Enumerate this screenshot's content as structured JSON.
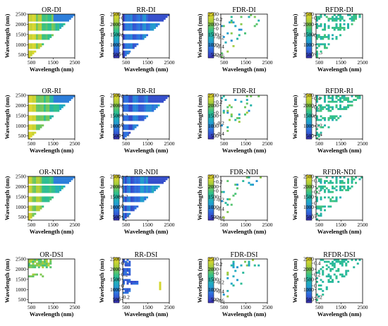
{
  "colormap": [
    "#3b2fb8",
    "#2f6fe0",
    "#1fa7c9",
    "#2fc08a",
    "#a6cc3a",
    "#f3dc2a"
  ],
  "chart_data": [
    {
      "type": "heatmap",
      "title": "OR-DI",
      "xlabel": "Wavelength (nm)",
      "ylabel": "Wavelength (nm)",
      "xticks": [
        "500",
        "1500",
        "2500"
      ],
      "yticks": [
        "500",
        "1000",
        "1500",
        "2000",
        "2500"
      ],
      "xlim": [
        350,
        2500
      ],
      "ylim": [
        350,
        2500
      ],
      "cbar_ticks": [
        {
          "v": 0.5,
          "label": "0.5"
        },
        {
          "v": 0,
          "label": "0"
        },
        {
          "v": -0.5,
          "label": "-0.5"
        }
      ],
      "clim": [
        -0.65,
        0.65
      ],
      "pattern": "dense",
      "base": 0.72
    },
    {
      "type": "heatmap",
      "title": "RR-DI",
      "xlabel": "Wavelength (nm)",
      "ylabel": "Wavelength (nm)",
      "xticks": [
        "500",
        "1500",
        "2500"
      ],
      "yticks": [
        "500",
        "1000",
        "1500",
        "2000",
        "2500"
      ],
      "xlim": [
        350,
        2500
      ],
      "ylim": [
        350,
        2500
      ],
      "cbar_ticks": [
        {
          "v": 0.2,
          "label": "0.2"
        },
        {
          "v": 0,
          "label": "0"
        },
        {
          "v": -0.2,
          "label": "-0.2"
        },
        {
          "v": -0.4,
          "label": "-0.4"
        },
        {
          "v": -0.6,
          "label": "-0.6"
        }
      ],
      "clim": [
        -0.65,
        0.35
      ],
      "pattern": "dense",
      "base": 0.22
    },
    {
      "type": "heatmap",
      "title": "FDR-DI",
      "xlabel": "Wavelength (nm)",
      "ylabel": "Wavelength (nm)",
      "xticks": [
        "500",
        "1500",
        "2500"
      ],
      "yticks": [
        "500",
        "1000",
        "1500",
        "2000",
        "2500"
      ],
      "xlim": [
        350,
        2500
      ],
      "ylim": [
        350,
        2500
      ],
      "cbar_ticks": [
        {
          "v": 0.5,
          "label": "0.5"
        },
        {
          "v": 0,
          "label": "0"
        },
        {
          "v": -0.5,
          "label": "-0.5"
        }
      ],
      "clim": [
        -0.65,
        0.65
      ],
      "pattern": "sparse",
      "base": 0.5
    },
    {
      "type": "heatmap",
      "title": "RFDR-DI",
      "xlabel": "Wavelength (nm)",
      "ylabel": "Wavelength (nm)",
      "xticks": [
        "500",
        "1500",
        "2500"
      ],
      "yticks": [
        "500",
        "1000",
        "1500",
        "2000",
        "2500"
      ],
      "xlim": [
        350,
        2500
      ],
      "ylim": [
        350,
        2500
      ],
      "cbar_ticks": [
        {
          "v": 0.2,
          "label": "0.2"
        },
        {
          "v": 0,
          "label": "0"
        },
        {
          "v": -0.2,
          "label": "-0.2"
        },
        {
          "v": -0.4,
          "label": "-0.4"
        }
      ],
      "clim": [
        -0.45,
        0.35
      ],
      "pattern": "medium",
      "base": 0.5
    },
    {
      "type": "heatmap",
      "title": "OR-RI",
      "xlabel": "Wavelength (nm)",
      "ylabel": "Wavelength (nm)",
      "xticks": [
        "500",
        "1500",
        "2500"
      ],
      "yticks": [
        "500",
        "1000",
        "1500",
        "2000",
        "2500"
      ],
      "xlim": [
        350,
        2500
      ],
      "ylim": [
        350,
        2500
      ],
      "cbar_ticks": [
        {
          "v": 0.6,
          "label": "0.6"
        },
        {
          "v": 0.4,
          "label": "0.4"
        },
        {
          "v": 0.2,
          "label": "0.2"
        },
        {
          "v": 0,
          "label": "0"
        },
        {
          "v": -0.2,
          "label": "-0.2"
        }
      ],
      "clim": [
        -0.3,
        0.65
      ],
      "pattern": "dense",
      "base": 0.72
    },
    {
      "type": "heatmap",
      "title": "RR-RI",
      "xlabel": "Wavelength (nm)",
      "ylabel": "Wavelength (nm)",
      "xticks": [
        "500",
        "1500",
        "2500"
      ],
      "yticks": [
        "500",
        "1000",
        "1500",
        "2000",
        "2500"
      ],
      "xlim": [
        350,
        2500
      ],
      "ylim": [
        350,
        2500
      ],
      "cbar_ticks": [
        {
          "v": 0.2,
          "label": "0.2"
        },
        {
          "v": 0,
          "label": "0"
        },
        {
          "v": -0.2,
          "label": "-0.2"
        },
        {
          "v": -0.4,
          "label": "-0.4"
        }
      ],
      "clim": [
        -0.5,
        0.35
      ],
      "pattern": "dense",
      "base": 0.22
    },
    {
      "type": "heatmap",
      "title": "FDR-RI",
      "xlabel": "Wavelength (nm)",
      "ylabel": "Wavelength (nm)",
      "xticks": [
        "500",
        "1500",
        "2500"
      ],
      "yticks": [
        "500",
        "1000",
        "1500",
        "2000",
        "2500"
      ],
      "xlim": [
        350,
        2500
      ],
      "ylim": [
        350,
        2500
      ],
      "cbar_ticks": [
        {
          "v": 0.4,
          "label": "0.4"
        },
        {
          "v": 0.2,
          "label": "0.2"
        },
        {
          "v": 0,
          "label": "0"
        },
        {
          "v": -0.2,
          "label": "-0.2"
        },
        {
          "v": -0.4,
          "label": "-0.4"
        }
      ],
      "clim": [
        -0.5,
        0.5
      ],
      "pattern": "sparse",
      "base": 0.5
    },
    {
      "type": "heatmap",
      "title": "RFDR-RI",
      "xlabel": "Wavelength (nm)",
      "ylabel": "Wavelength (nm)",
      "xticks": [
        "500",
        "1500",
        "2500"
      ],
      "yticks": [
        "500",
        "1000",
        "1500",
        "2000",
        "2500"
      ],
      "xlim": [
        350,
        2500
      ],
      "ylim": [
        350,
        2500
      ],
      "cbar_ticks": [
        {
          "v": 0.4,
          "label": "0.4"
        },
        {
          "v": 0.2,
          "label": "0.2"
        },
        {
          "v": 0,
          "label": "0"
        },
        {
          "v": -0.2,
          "label": "-0.2"
        }
      ],
      "clim": [
        -0.3,
        0.5
      ],
      "pattern": "medium",
      "base": 0.5
    },
    {
      "type": "heatmap",
      "title": "OR-NDI",
      "xlabel": "Wavelength (nm)",
      "ylabel": "Wavelength (nm)",
      "xticks": [
        "500",
        "1500",
        "2500"
      ],
      "yticks": [
        "500",
        "1000",
        "1500",
        "2000",
        "2500"
      ],
      "xlim": [
        350,
        2500
      ],
      "ylim": [
        350,
        2500
      ],
      "cbar_ticks": [
        {
          "v": 0.6,
          "label": "0.6"
        },
        {
          "v": 0.4,
          "label": "0.4"
        },
        {
          "v": 0.2,
          "label": "0.2"
        },
        {
          "v": 0,
          "label": "0"
        },
        {
          "v": -0.2,
          "label": "-0.2"
        }
      ],
      "clim": [
        -0.3,
        0.65
      ],
      "pattern": "dense",
      "base": 0.72
    },
    {
      "type": "heatmap",
      "title": "RR-NDI",
      "xlabel": "Wavelength (nm)",
      "ylabel": "Wavelength (nm)",
      "xticks": [
        "500",
        "1500",
        "2500"
      ],
      "yticks": [
        "500",
        "1000",
        "1500",
        "2000",
        "2500"
      ],
      "xlim": [
        350,
        2500
      ],
      "ylim": [
        350,
        2500
      ],
      "cbar_ticks": [
        {
          "v": 0.2,
          "label": "0.2"
        },
        {
          "v": 0,
          "label": "0"
        },
        {
          "v": -0.2,
          "label": "-0.2"
        },
        {
          "v": -0.4,
          "label": "-0.4"
        },
        {
          "v": -0.6,
          "label": "-0.6"
        }
      ],
      "clim": [
        -0.65,
        0.35
      ],
      "pattern": "dense",
      "base": 0.22
    },
    {
      "type": "heatmap",
      "title": "FDR-NDI",
      "xlabel": "Wavelength (nm)",
      "ylabel": "Wavelength (nm)",
      "xticks": [
        "500",
        "1500",
        "2500"
      ],
      "yticks": [
        "500",
        "1000",
        "1500",
        "2000",
        "2500"
      ],
      "xlim": [
        350,
        2500
      ],
      "ylim": [
        350,
        2500
      ],
      "cbar_ticks": [
        {
          "v": 0.4,
          "label": "0.4"
        },
        {
          "v": 0.2,
          "label": "0.2"
        },
        {
          "v": 0,
          "label": "0"
        },
        {
          "v": -0.2,
          "label": "-0.2"
        }
      ],
      "clim": [
        -0.3,
        0.5
      ],
      "pattern": "sparse",
      "base": 0.5
    },
    {
      "type": "heatmap",
      "title": "RFDR-NDI",
      "xlabel": "Wavelength (nm)",
      "ylabel": "Wavelength (nm)",
      "xticks": [
        "500",
        "1500",
        "2500"
      ],
      "yticks": [
        "500",
        "1000",
        "1500",
        "2000",
        "2500"
      ],
      "xlim": [
        350,
        2500
      ],
      "ylim": [
        350,
        2500
      ],
      "cbar_ticks": [
        {
          "v": 0.4,
          "label": "0.4"
        },
        {
          "v": 0.2,
          "label": "0.2"
        },
        {
          "v": 0,
          "label": "0"
        },
        {
          "v": -0.2,
          "label": "-0.2"
        },
        {
          "v": -0.4,
          "label": "-0.4"
        }
      ],
      "clim": [
        -0.45,
        0.5
      ],
      "pattern": "medium",
      "base": 0.5
    },
    {
      "type": "heatmap",
      "title": "OR-DSI",
      "xlabel": "Wavelength (nm)",
      "ylabel": "Wavelength (nm)",
      "xticks": [
        "500",
        "1500",
        "2500"
      ],
      "yticks": [
        "500",
        "1000",
        "1500",
        "2000",
        "2500"
      ],
      "xlim": [
        350,
        2500
      ],
      "ylim": [
        350,
        2500
      ],
      "cbar_ticks": [
        {
          "v": 0.4,
          "label": "0.4"
        },
        {
          "v": 0.2,
          "label": "0.2"
        },
        {
          "v": 0,
          "label": "0"
        },
        {
          "v": -0.2,
          "label": "-0.2"
        }
      ],
      "clim": [
        -0.3,
        0.5
      ],
      "pattern": "dsi-or",
      "base": 0.65
    },
    {
      "type": "heatmap",
      "title": "RR-DSI",
      "xlabel": "Wavelength (nm)",
      "ylabel": "Wavelength (nm)",
      "xticks": [
        "500",
        "1500",
        "2500"
      ],
      "yticks": [
        "500",
        "1000",
        "1500",
        "2000",
        "2500"
      ],
      "xlim": [
        350,
        2500
      ],
      "ylim": [
        350,
        2500
      ],
      "cbar_ticks": [
        {
          "v": 0.2,
          "label": "0.2"
        },
        {
          "v": 0,
          "label": "0"
        },
        {
          "v": -0.2,
          "label": "-0.2"
        },
        {
          "v": -0.4,
          "label": "-0.4"
        },
        {
          "v": -0.6,
          "label": "-0.6"
        }
      ],
      "clim": [
        -0.65,
        0.35
      ],
      "pattern": "dsi-rr",
      "base": 0.22
    },
    {
      "type": "heatmap",
      "title": "FDR-DSI",
      "xlabel": "Wavelength (nm)",
      "ylabel": "Wavelength (nm)",
      "xticks": [
        "500",
        "1500",
        "2500"
      ],
      "yticks": [
        "500",
        "1000",
        "1500",
        "2000",
        "2500"
      ],
      "xlim": [
        350,
        2500
      ],
      "ylim": [
        350,
        2500
      ],
      "cbar_ticks": [
        {
          "v": 0.4,
          "label": "0.4"
        },
        {
          "v": 0.2,
          "label": "0.2"
        },
        {
          "v": 0,
          "label": "0"
        },
        {
          "v": -0.2,
          "label": "-0.2"
        }
      ],
      "clim": [
        -0.3,
        0.5
      ],
      "pattern": "sparse",
      "base": 0.5
    },
    {
      "type": "heatmap",
      "title": "RFDR-DSI",
      "xlabel": "Wavelength (nm)",
      "ylabel": "Wavelength (nm)",
      "xticks": [
        "500",
        "1500",
        "2500"
      ],
      "yticks": [
        "500",
        "1000",
        "1500",
        "2000",
        "2500"
      ],
      "xlim": [
        350,
        2500
      ],
      "ylim": [
        350,
        2500
      ],
      "cbar_ticks": [
        {
          "v": 0.2,
          "label": "0.2"
        },
        {
          "v": 0,
          "label": "0"
        },
        {
          "v": -0.2,
          "label": "-0.2"
        }
      ],
      "clim": [
        -0.3,
        0.3
      ],
      "pattern": "faint",
      "base": 0.5
    }
  ]
}
